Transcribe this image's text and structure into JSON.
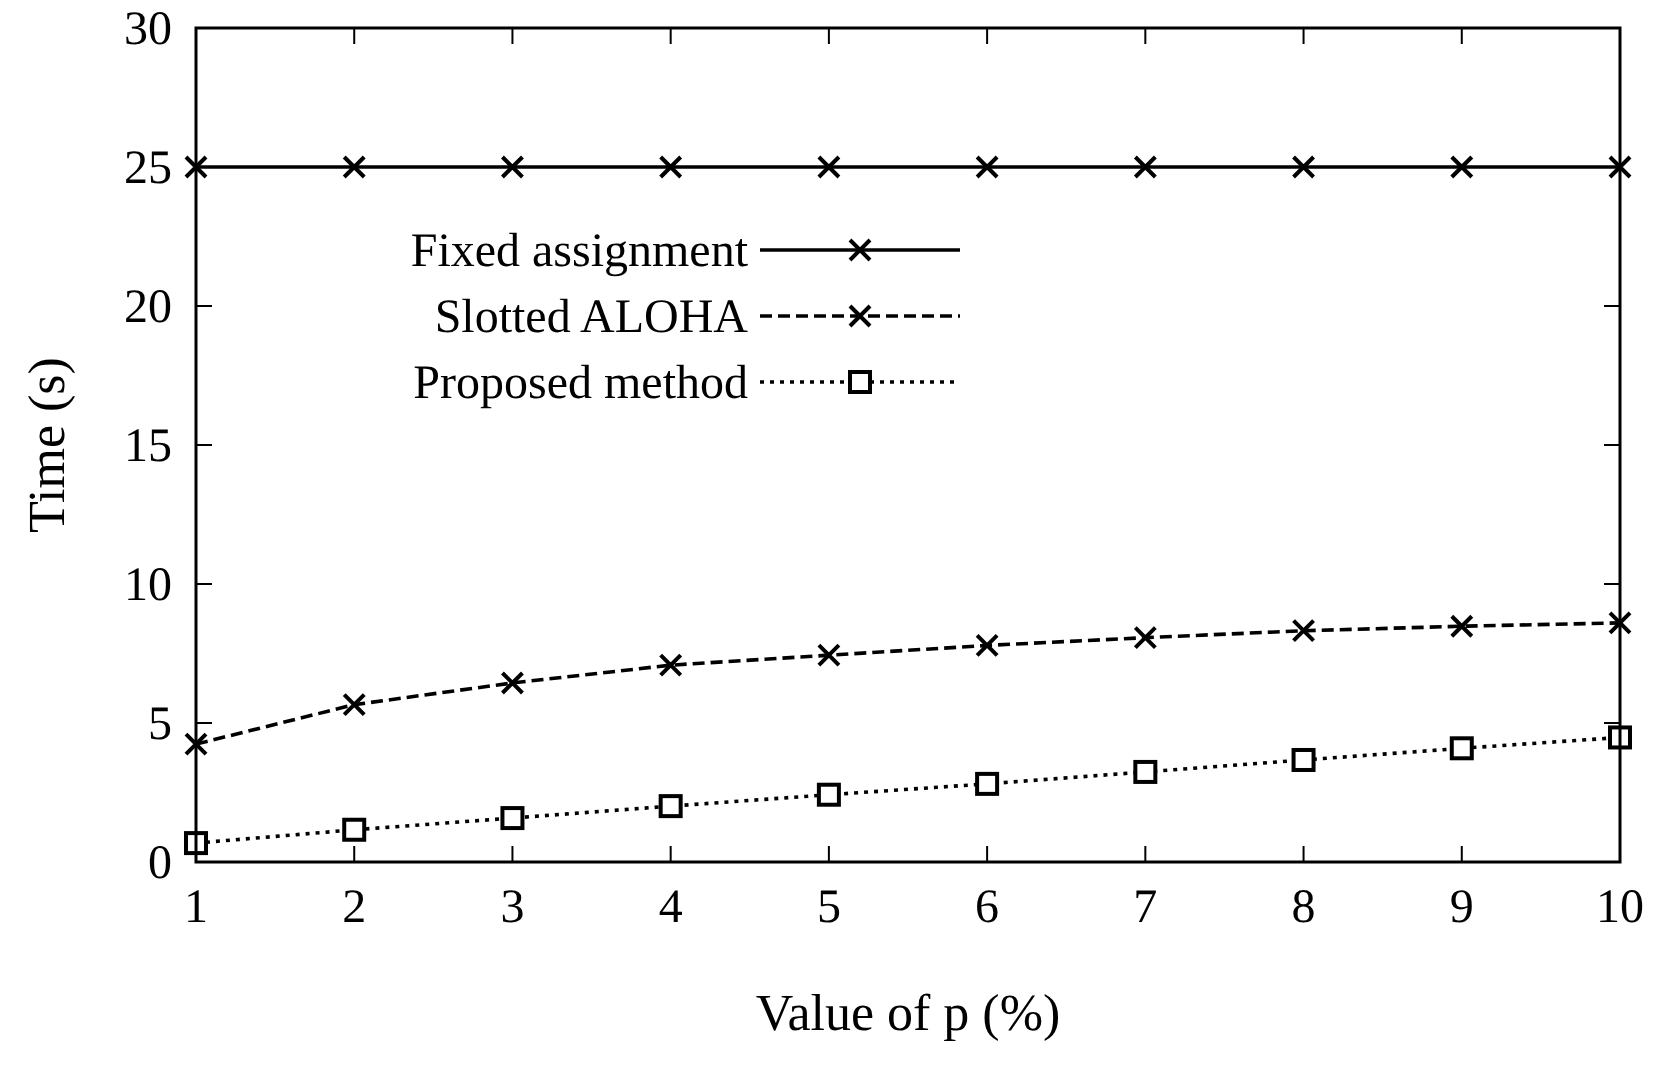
{
  "chart_data": {
    "type": "line",
    "xlabel": "Value of p  (%)",
    "ylabel": "Time (s)",
    "x": [
      1,
      2,
      3,
      4,
      5,
      6,
      7,
      8,
      9,
      10
    ],
    "xlim": [
      1,
      10
    ],
    "xticks": [
      1,
      2,
      3,
      4,
      5,
      6,
      7,
      8,
      9,
      10
    ],
    "ylim": [
      0,
      30
    ],
    "yticks": [
      0,
      5,
      10,
      15,
      20,
      25,
      30
    ],
    "grid": false,
    "legend": "top left",
    "series": [
      {
        "name": "Fixed assignment",
        "color": "#000000",
        "marker": "cross",
        "line_style": "solid",
        "values": [
          25,
          25,
          25,
          25,
          25,
          25,
          25,
          25,
          25,
          25
        ]
      },
      {
        "name": "Slotted ALOHA",
        "color": "#000000",
        "marker": "cross",
        "line_style": "dashed",
        "values": [
          4.24,
          5.66,
          6.44,
          7.08,
          7.44,
          7.79,
          8.07,
          8.32,
          8.48,
          8.6
        ]
      },
      {
        "name": "Proposed method",
        "color": "#000000",
        "marker": "square",
        "line_style": "dotted",
        "values": [
          0.68,
          1.16,
          1.58,
          2.01,
          2.42,
          2.81,
          3.24,
          3.67,
          4.09,
          4.48
        ]
      }
    ]
  }
}
